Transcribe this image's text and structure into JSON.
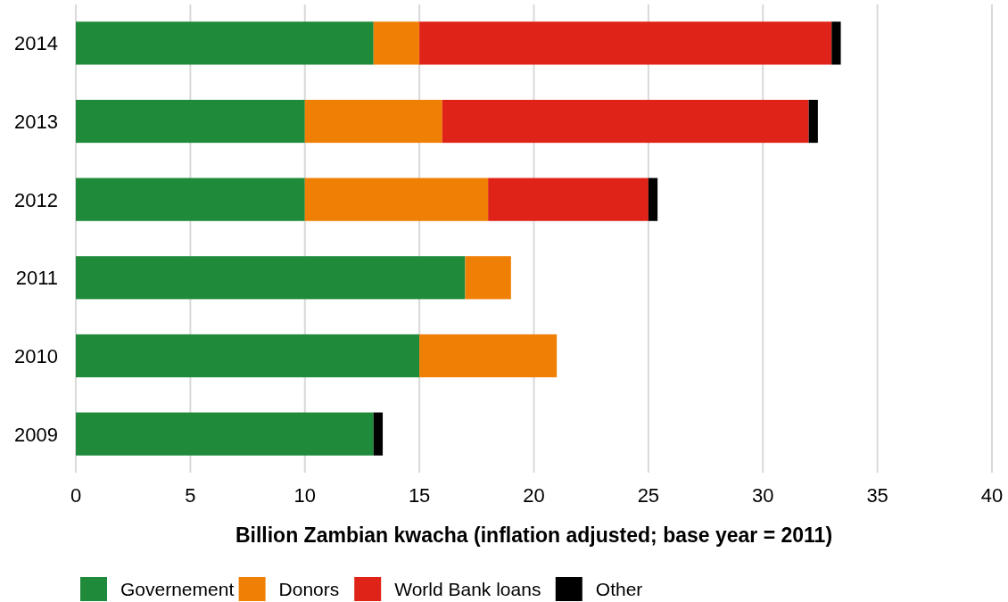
{
  "chart_data": {
    "type": "bar",
    "orientation": "horizontal",
    "stacked": true,
    "categories": [
      "2014",
      "2013",
      "2012",
      "2011",
      "2010",
      "2009"
    ],
    "series": [
      {
        "name": "Governement",
        "color": "#1e8a3a",
        "values": [
          13,
          10,
          10,
          17,
          15,
          13
        ]
      },
      {
        "name": "Donors",
        "color": "#f07f05",
        "values": [
          2,
          6,
          8,
          2,
          6,
          0
        ]
      },
      {
        "name": "World Bank loans",
        "color": "#e02318",
        "values": [
          18,
          16,
          7,
          0,
          0,
          0
        ]
      },
      {
        "name": "Other",
        "color": "#000000",
        "values": [
          0.4,
          0.4,
          0.4,
          0,
          0,
          0.4
        ]
      }
    ],
    "xlim": [
      0,
      40
    ],
    "xticks": [
      0,
      5,
      10,
      15,
      20,
      25,
      30,
      35,
      40
    ],
    "xlabel": "Billion Zambian  kwacha (inflation adjusted; base year = 2011)",
    "grid": "x",
    "legend": "bottom left"
  }
}
